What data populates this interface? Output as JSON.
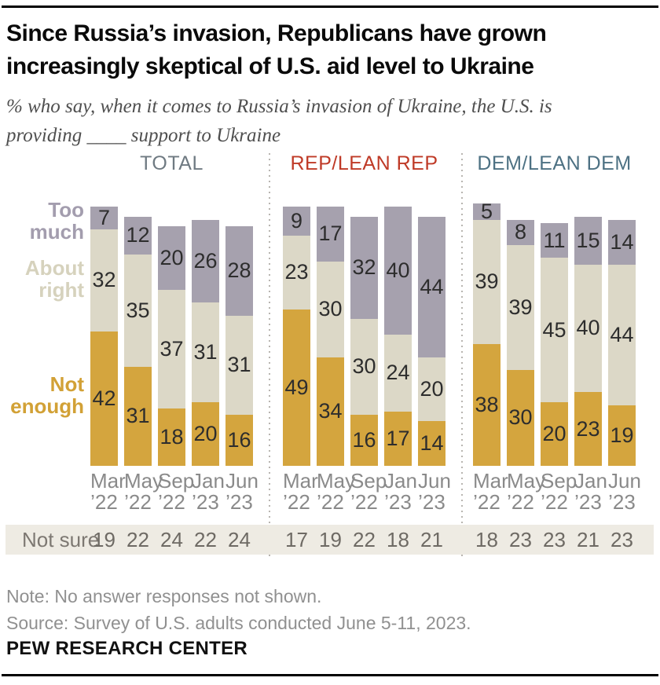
{
  "header": {
    "title": [
      "Since Russia’s invasion, Republicans have grown",
      "increasingly skeptical of U.S. aid level to Ukraine"
    ],
    "subtitle": [
      "% who say, when it comes to Russia’s invasion of Ukraine, the U.S. is",
      "providing ____ support to Ukraine"
    ]
  },
  "chart_data": {
    "type": "bar",
    "stacked": true,
    "not_sure_label": "Not sure",
    "categories": [
      {
        "month": "Mar",
        "year": "’22"
      },
      {
        "month": "May",
        "year": "’22"
      },
      {
        "month": "Sep",
        "year": "’22"
      },
      {
        "month": "Jan",
        "year": "’23"
      },
      {
        "month": "Jun",
        "year": "’23"
      }
    ],
    "segments_top_to_bottom": [
      {
        "name": "Too much",
        "color": "#a6a1ae",
        "label_color": "#a39dae"
      },
      {
        "name": "About right",
        "color": "#dcd8c7",
        "label_color": "#d6d2bd"
      },
      {
        "name": "Not enough",
        "color": "#d4a53e",
        "label_color": "#d2a136"
      }
    ],
    "panels": [
      {
        "label": "TOTAL",
        "accent": "#6f7a82",
        "series": [
          {
            "name": "Too much",
            "values": [
              7,
              12,
              20,
              26,
              28
            ]
          },
          {
            "name": "About right",
            "values": [
              32,
              35,
              37,
              31,
              31
            ]
          },
          {
            "name": "Not enough",
            "values": [
              42,
              31,
              18,
              20,
              16
            ]
          }
        ],
        "not_sure": [
          19,
          22,
          24,
          22,
          24
        ]
      },
      {
        "label": "REP/LEAN REP",
        "accent": "#bf3a27",
        "series": [
          {
            "name": "Too much",
            "values": [
              9,
              17,
              32,
              40,
              44
            ]
          },
          {
            "name": "About right",
            "values": [
              23,
              30,
              30,
              24,
              20
            ]
          },
          {
            "name": "Not enough",
            "values": [
              49,
              34,
              16,
              17,
              14
            ]
          }
        ],
        "not_sure": [
          17,
          19,
          22,
          18,
          21
        ]
      },
      {
        "label": "DEM/LEAN DEM",
        "accent": "#4d7183",
        "series": [
          {
            "name": "Too much",
            "values": [
              5,
              8,
              11,
              15,
              14
            ]
          },
          {
            "name": "About right",
            "values": [
              39,
              39,
              45,
              40,
              44
            ]
          },
          {
            "name": "Not enough",
            "values": [
              38,
              30,
              20,
              23,
              19
            ]
          }
        ],
        "not_sure": [
          18,
          23,
          23,
          21,
          23
        ]
      }
    ]
  },
  "notes": {
    "note": "Note: No answer responses not shown.",
    "source": "Source: Survey of U.S. adults conducted June 5-11, 2023."
  },
  "footer": {
    "brand": "PEW RESEARCH CENTER"
  }
}
